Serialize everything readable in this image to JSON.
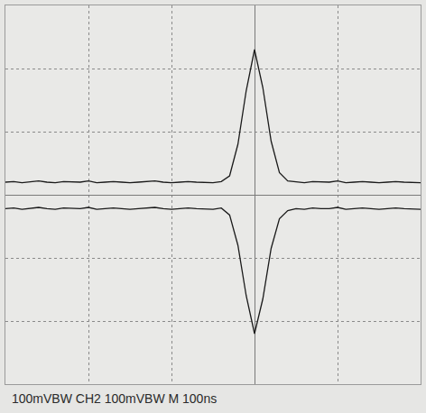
{
  "chart_data": {
    "type": "line",
    "x": [
      -300,
      -290,
      -280,
      -270,
      -260,
      -250,
      -240,
      -230,
      -220,
      -210,
      -200,
      -190,
      -180,
      -170,
      -160,
      -150,
      -140,
      -130,
      -120,
      -110,
      -100,
      -90,
      -80,
      -70,
      -60,
      -50,
      -40,
      -30,
      -20,
      -10,
      0,
      10,
      20,
      30,
      40,
      50,
      60,
      70,
      80,
      90,
      100,
      110,
      120,
      130,
      140,
      150,
      160,
      170,
      180,
      190,
      200
    ],
    "series": [
      {
        "color": "#1a1a1a",
        "values": [
          20,
          21,
          19,
          20,
          22,
          20,
          19,
          21,
          20,
          20,
          22,
          19,
          20,
          21,
          20,
          19,
          20,
          21,
          22,
          20,
          19,
          20,
          21,
          20,
          20,
          19,
          21,
          30,
          80,
          165,
          230,
          170,
          85,
          35,
          22,
          20,
          19,
          21,
          20,
          20,
          22,
          19,
          20,
          21,
          20,
          19,
          20,
          21,
          20,
          20,
          19
        ]
      },
      {
        "color": "#1a1a1a",
        "values": [
          -22,
          -21,
          -23,
          -22,
          -20,
          -22,
          -23,
          -21,
          -22,
          -22,
          -20,
          -23,
          -22,
          -21,
          -22,
          -23,
          -22,
          -21,
          -20,
          -22,
          -23,
          -22,
          -21,
          -22,
          -22,
          -23,
          -21,
          -32,
          -80,
          -160,
          -220,
          -165,
          -85,
          -38,
          -25,
          -22,
          -23,
          -21,
          -22,
          -22,
          -20,
          -23,
          -22,
          -21,
          -22,
          -23,
          -22,
          -21,
          -22,
          -22,
          -23
        ]
      }
    ],
    "xlim": [
      -300,
      200
    ],
    "xticks": [
      -300,
      -200,
      -100,
      0,
      100,
      200
    ],
    "ylim": [
      -300,
      300
    ],
    "yticks": [
      -300,
      -200,
      -100,
      0,
      100,
      200,
      300
    ],
    "grid": true,
    "tick_labels": false,
    "annotations": [
      "100mVBW CH2 100mVBW M 100ns"
    ]
  }
}
